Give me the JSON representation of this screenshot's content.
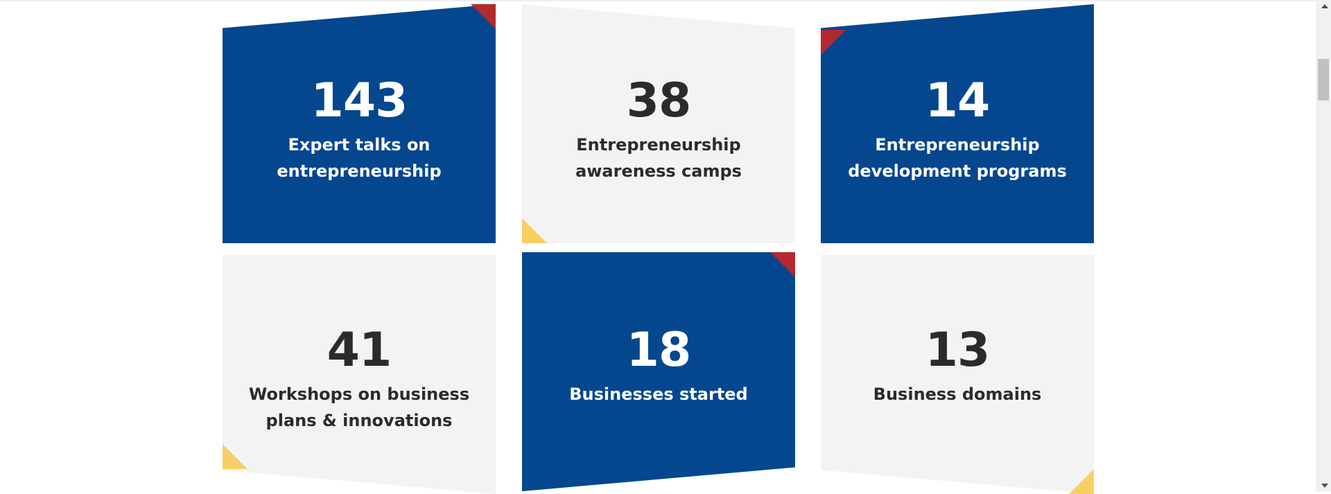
{
  "stats": [
    {
      "number": "143",
      "label_line1": "Expert talks on",
      "label_line2": "entrepreneurship",
      "theme": "blue"
    },
    {
      "number": "38",
      "label_line1": "Entrepreneurship",
      "label_line2": "awareness camps",
      "theme": "gray"
    },
    {
      "number": "14",
      "label_line1": "Entrepreneurship",
      "label_line2": "development programs",
      "theme": "blue"
    },
    {
      "number": "41",
      "label_line1": "Workshops on business",
      "label_line2": "plans & innovations",
      "theme": "gray"
    },
    {
      "number": "18",
      "label_line1": "Businesses started",
      "label_line2": "",
      "theme": "blue"
    },
    {
      "number": "13",
      "label_line1": "Business domains",
      "label_line2": "",
      "theme": "gray"
    }
  ],
  "colors": {
    "blue": "#04478f",
    "gray": "#f3f3f3",
    "red_accent": "#b22a30",
    "yellow_accent": "#f7cf64",
    "dark_text": "#2b2b2b"
  }
}
